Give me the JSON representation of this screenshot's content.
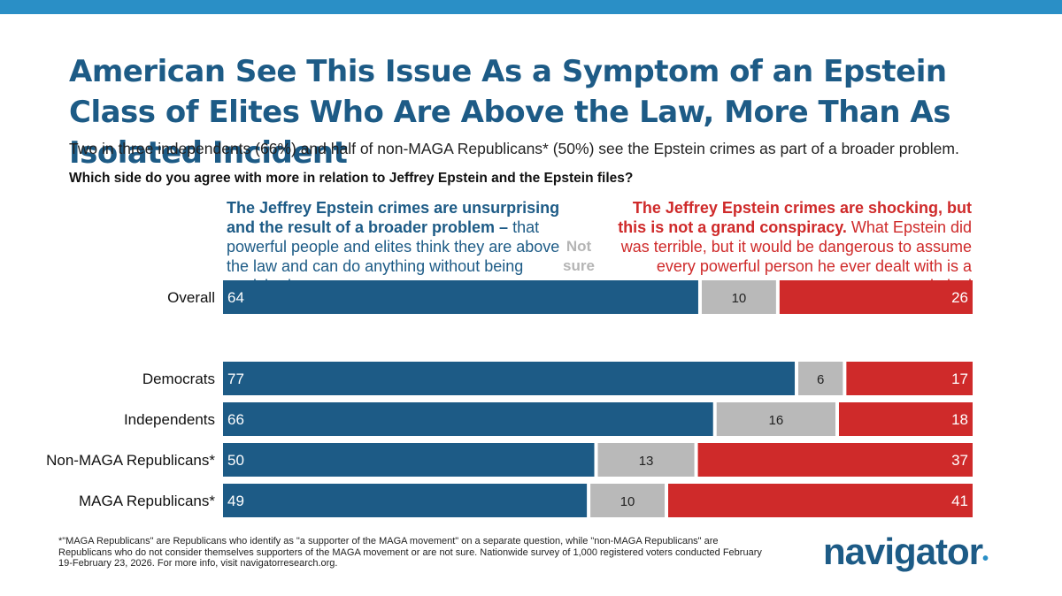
{
  "title": "American See This Issue As a Symptom of an Epstein Class of Elites Who Are Above the Law, More Than As Isolated Incident",
  "subtitle": "Two in three independents (66%) and half of non-MAGA Republicans* (50%) see the Epstein crimes as part of a broader problem.",
  "question": "Which side do you agree with more in relation to Jeffrey Epstein and the Epstein files?",
  "headers": {
    "left_bold": "The Jeffrey Epstein crimes are unsurprising and the result of a broader problem –",
    "left_rest": " that powerful people and elites think they are above the law and can do anything without being punished",
    "middle": "Not sure",
    "right_bold": "The Jeffrey Epstein crimes are shocking, but this is not a grand conspiracy.",
    "right_rest": " What Epstein did was terrible, but it would be dangerous to assume every powerful person he ever dealt with is a criminal"
  },
  "colors": {
    "broader_problem": "#1d5b86",
    "not_sure": "#b9b9b9",
    "not_conspiracy": "#cf2a2a",
    "top_bar": "#2a8fc6"
  },
  "chart_data": {
    "type": "bar",
    "orientation": "horizontal",
    "stacked": true,
    "xlim": [
      0,
      100
    ],
    "categories": [
      "Overall",
      "Democrats",
      "Independents",
      "Non-MAGA Republicans*",
      "MAGA Republicans*"
    ],
    "series": [
      {
        "name": "The Jeffrey Epstein crimes are unsurprising and the result of a broader problem",
        "values": [
          64,
          77,
          66,
          50,
          49
        ]
      },
      {
        "name": "Not sure",
        "values": [
          10,
          6,
          16,
          13,
          10
        ]
      },
      {
        "name": "The Jeffrey Epstein crimes are shocking, but this is not a grand conspiracy",
        "values": [
          26,
          17,
          18,
          37,
          41
        ]
      }
    ]
  },
  "footnote": "*\"MAGA Republicans\" are Republicans who identify as \"a supporter of the MAGA movement\" on a separate question, while \"non-MAGA Republicans\" are Republicans who do not consider themselves supporters of the MAGA movement or are not sure. Nationwide survey of 1,000 registered voters conducted February 19-February 23, 2026. For more info, visit navigatorresearch.org.",
  "logo": {
    "text": "navigator",
    "mark": "•"
  }
}
